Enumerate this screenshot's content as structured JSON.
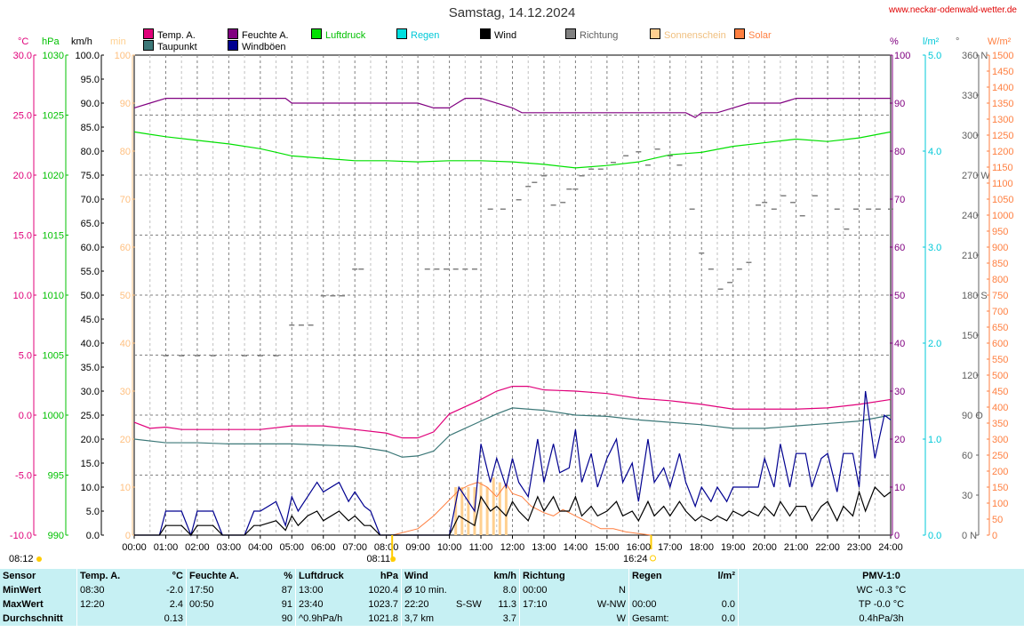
{
  "title": "Samstag, 14.12.2024",
  "site": "www.neckar-odenwald-wetter.de",
  "legend": [
    {
      "label": "Temp. A.",
      "color": "#e0007a"
    },
    {
      "label": "Taupunkt",
      "color": "#3c7878"
    },
    {
      "label": "Feuchte A.",
      "color": "#800080"
    },
    {
      "label": "Windböen",
      "color": "#000090"
    },
    {
      "label": "Luftdruck",
      "color": "#00e000"
    },
    {
      "label": "Regen",
      "color": "#00e0e0"
    },
    {
      "label": "Wind",
      "color": "#000000"
    },
    {
      "label": "Richtung",
      "color": "#808080"
    },
    {
      "label": "Sonnenschein",
      "color": "#ffd090"
    },
    {
      "label": "Solar",
      "color": "#ff7f40"
    }
  ],
  "units": {
    "temp": "°C",
    "pressure": "hPa",
    "wind": "km/h",
    "sun": "min",
    "humidity": "%",
    "rain": "l/m²",
    "direction": "°",
    "solar": "W/m²"
  },
  "markers": {
    "sunrise_left": "08:12",
    "sunrise": "08:11",
    "sunset": "16:24"
  },
  "chart_data": {
    "type": "line",
    "x_ticks": [
      "00:00",
      "01:00",
      "02:00",
      "03:00",
      "04:00",
      "05:00",
      "06:00",
      "07:00",
      "08:00",
      "09:00",
      "10:00",
      "11:00",
      "12:00",
      "13:00",
      "14:00",
      "15:00",
      "16:00",
      "17:00",
      "18:00",
      "19:00",
      "20:00",
      "21:00",
      "22:00",
      "23:00",
      "24:00"
    ],
    "axes": {
      "temp_ticks": [
        "30.0",
        "25.0",
        "20.0",
        "15.0",
        "10.0",
        "5.0",
        "0.0",
        "-5.0",
        "-10.0"
      ],
      "pressure_ticks": [
        "1030",
        "1025",
        "1020",
        "1015",
        "1010",
        "1005",
        "1000",
        "995",
        "990"
      ],
      "wind_ticks": [
        "100.0",
        "95.0",
        "90.0",
        "85.0",
        "80.0",
        "75.0",
        "70.0",
        "65.0",
        "60.0",
        "55.0",
        "50.0",
        "45.0",
        "40.0",
        "35.0",
        "30.0",
        "25.0",
        "20.0",
        "15.0",
        "10.0",
        "5.0",
        "0.0"
      ],
      "sun_ticks": [
        "100",
        "90",
        "80",
        "70",
        "60",
        "50",
        "40",
        "30",
        "20",
        "10",
        "0"
      ],
      "humidity_ticks": [
        "100",
        "90",
        "80",
        "70",
        "60",
        "50",
        "40",
        "30",
        "20",
        "10",
        "0"
      ],
      "rain_ticks": [
        "5.0",
        "4.0",
        "3.0",
        "2.0",
        "1.0",
        "0.0"
      ],
      "dir_ticks": [
        "360 N",
        "330",
        "300",
        "270 W",
        "240",
        "210",
        "180 S",
        "150",
        "120",
        "90 O",
        "60",
        "30",
        "0 N"
      ],
      "solar_ticks": [
        "1500",
        "1450",
        "1400",
        "1350",
        "1300",
        "1250",
        "1200",
        "1150",
        "1100",
        "1050",
        "1000",
        "950",
        "900",
        "850",
        "800",
        "750",
        "700",
        "650",
        "600",
        "550",
        "500",
        "450",
        "400",
        "350",
        "300",
        "250",
        "200",
        "150",
        "100",
        "50",
        "0"
      ]
    },
    "ranges": {
      "wind": [
        0,
        100
      ],
      "temp": [
        -10,
        30
      ],
      "pressure": [
        990,
        1030
      ],
      "humidity": [
        0,
        100
      ],
      "direction": [
        0,
        360
      ],
      "solar": [
        0,
        1500
      ]
    },
    "series": [
      {
        "name": "Temp. A.",
        "color": "#e0007a",
        "axis": "temp",
        "x": [
          0,
          0.5,
          1,
          1.5,
          2,
          3,
          4,
          5,
          6,
          7,
          8,
          8.5,
          9,
          9.5,
          10,
          11,
          11.5,
          12,
          12.5,
          13,
          14,
          15,
          16,
          17,
          18,
          19,
          20,
          21,
          22,
          23,
          24
        ],
        "y": [
          -0.6,
          -1.1,
          -1.0,
          -1.2,
          -1.2,
          -1.2,
          -1.2,
          -0.9,
          -0.9,
          -1.2,
          -1.5,
          -1.9,
          -1.9,
          -1.4,
          0.1,
          1.3,
          2.0,
          2.4,
          2.4,
          2.1,
          2.0,
          1.8,
          1.4,
          1.2,
          0.9,
          0.5,
          0.5,
          0.5,
          0.6,
          0.9,
          1.3
        ]
      },
      {
        "name": "Taupunkt",
        "color": "#3c7878",
        "axis": "temp",
        "x": [
          0,
          1,
          2,
          3,
          4,
          5,
          6,
          7,
          8,
          8.5,
          9,
          9.5,
          10,
          11,
          11.5,
          12,
          13,
          14,
          15,
          16,
          17,
          18,
          19,
          20,
          21,
          22,
          23,
          24
        ],
        "y": [
          -2.0,
          -2.3,
          -2.3,
          -2.4,
          -2.4,
          -2.4,
          -2.5,
          -2.6,
          -3.0,
          -3.5,
          -3.4,
          -3.0,
          -1.7,
          -0.5,
          0.1,
          0.6,
          0.4,
          0.0,
          -0.1,
          -0.4,
          -0.6,
          -0.8,
          -1.1,
          -1.1,
          -0.9,
          -0.7,
          -0.5,
          0.0
        ]
      },
      {
        "name": "Feuchte A.",
        "color": "#800080",
        "axis": "humidity",
        "x": [
          0,
          0.5,
          1,
          2,
          3,
          4,
          4.8,
          5,
          6,
          7,
          8,
          9,
          9.5,
          10,
          10.5,
          11,
          12,
          12.3,
          13,
          14,
          15,
          16,
          17,
          17.5,
          17.8,
          18,
          18.5,
          19,
          19.5,
          20,
          20.5,
          21,
          22,
          23,
          24
        ],
        "y": [
          89,
          90,
          91,
          91,
          91,
          91,
          91,
          90,
          90,
          90,
          90,
          90,
          89,
          89,
          91,
          91,
          89,
          88,
          88,
          88,
          88,
          88,
          88,
          88,
          87,
          88,
          88,
          89,
          90,
          90,
          90,
          91,
          91,
          91,
          91
        ]
      },
      {
        "name": "Luftdruck",
        "color": "#00e000",
        "axis": "pressure",
        "x": [
          0,
          0.5,
          1,
          2,
          3,
          4,
          4.5,
          5,
          6,
          7,
          8,
          9,
          10,
          11,
          12,
          13,
          14,
          15,
          16,
          17,
          18,
          19,
          20,
          21,
          22,
          23,
          24
        ],
        "y": [
          1023.6,
          1023.4,
          1023.2,
          1022.9,
          1022.6,
          1022.2,
          1021.9,
          1021.6,
          1021.4,
          1021.2,
          1021.2,
          1021.1,
          1021.2,
          1021.2,
          1021.1,
          1020.9,
          1020.6,
          1020.8,
          1021.1,
          1021.7,
          1021.9,
          1022.4,
          1022.7,
          1023.0,
          1022.8,
          1023.1,
          1023.6
        ]
      },
      {
        "name": "Windböen",
        "color": "#000090",
        "axis": "wind",
        "x": [
          0,
          0.5,
          0.8,
          1,
          1.5,
          1.8,
          2,
          2.5,
          2.8,
          3,
          3.5,
          3.8,
          4,
          4.5,
          4.8,
          5,
          5.2,
          5.5,
          5.8,
          6,
          6.5,
          6.8,
          7,
          7.3,
          7.5,
          7.8,
          8,
          9,
          10,
          10.3,
          10.8,
          11,
          11.3,
          11.5,
          11.8,
          12,
          12.2,
          12.5,
          12.8,
          13,
          13.3,
          13.5,
          13.8,
          14,
          14.2,
          14.5,
          14.7,
          15,
          15.3,
          15.5,
          15.8,
          16,
          16.3,
          16.5,
          16.8,
          17,
          17.3,
          17.5,
          17.8,
          18,
          18.3,
          18.5,
          18.8,
          19,
          19.3,
          19.5,
          19.8,
          20,
          20.3,
          20.5,
          20.8,
          21,
          21.3,
          21.5,
          21.8,
          22,
          22.3,
          22.5,
          22.8,
          23,
          23.2,
          23.5,
          23.8,
          24
        ],
        "y": [
          0,
          0,
          0,
          5,
          5,
          0,
          5,
          5,
          0,
          0,
          0,
          5,
          5,
          7,
          2,
          8,
          5,
          8,
          11,
          9,
          11,
          7,
          9,
          6,
          5,
          0,
          0,
          0,
          0,
          10,
          5,
          19,
          11,
          16,
          10,
          16,
          11,
          8,
          20,
          11,
          19,
          13,
          14,
          22,
          11,
          17,
          10,
          16,
          20,
          11,
          15,
          7,
          20,
          11,
          14,
          10,
          17,
          11,
          6,
          10,
          7,
          10,
          7,
          10,
          10,
          10,
          10,
          16,
          10,
          19,
          10,
          17,
          17,
          10,
          16,
          17,
          9,
          17,
          17,
          10,
          30,
          16,
          25,
          24
        ]
      },
      {
        "name": "Wind",
        "color": "#000000",
        "axis": "wind",
        "x": [
          0,
          0.5,
          0.8,
          1,
          1.5,
          1.8,
          2,
          2.5,
          2.8,
          3,
          3.5,
          3.8,
          4,
          4.5,
          4.8,
          5,
          5.2,
          5.5,
          5.8,
          6,
          6.5,
          6.8,
          7,
          7.3,
          7.5,
          7.8,
          8,
          9,
          10,
          10.3,
          10.8,
          11,
          11.3,
          11.5,
          11.8,
          12,
          12.2,
          12.5,
          12.8,
          13,
          13.3,
          13.5,
          13.8,
          14,
          14.2,
          14.5,
          14.7,
          15,
          15.3,
          15.5,
          15.8,
          16,
          16.3,
          16.5,
          16.8,
          17,
          17.3,
          17.5,
          17.8,
          18,
          18.3,
          18.5,
          18.8,
          19,
          19.3,
          19.5,
          19.8,
          20,
          20.3,
          20.5,
          20.8,
          21,
          21.3,
          21.5,
          21.8,
          22,
          22.3,
          22.5,
          22.8,
          23,
          23.2,
          23.5,
          23.8,
          24
        ],
        "y": [
          0,
          0,
          0,
          2,
          2,
          0,
          2,
          2,
          0,
          0,
          0,
          2,
          2,
          3,
          1,
          4,
          2,
          4,
          5,
          3,
          5,
          3,
          4,
          2,
          2,
          0,
          0,
          0,
          0,
          4,
          2,
          8,
          5,
          6,
          4,
          7,
          5,
          3,
          8,
          5,
          8,
          5,
          5,
          8,
          4,
          6,
          4,
          5,
          7,
          4,
          5,
          3,
          7,
          4,
          6,
          4,
          7,
          5,
          3,
          4,
          3,
          4,
          3,
          5,
          4,
          5,
          4,
          6,
          4,
          7,
          4,
          6,
          6,
          3,
          6,
          7,
          3,
          6,
          4,
          9,
          5,
          10,
          8,
          9
        ]
      },
      {
        "name": "Richtung",
        "color": "#808080",
        "axis": "direction",
        "style": "dots",
        "x": [
          1,
          1.5,
          2,
          2.5,
          3.5,
          4,
          4.5,
          5,
          5.3,
          5.6,
          6,
          6.3,
          6.6,
          7,
          7.2,
          9.3,
          9.6,
          9.9,
          10.2,
          10.5,
          10.8,
          11.3,
          11.7,
          12.2,
          12.5,
          12.7,
          13,
          13.3,
          13.6,
          13.8,
          14,
          14.2,
          14.5,
          14.8,
          15.2,
          15.6,
          16,
          16.3,
          16.6,
          17,
          17.3,
          17.7,
          18,
          18.3,
          18.6,
          18.9,
          19.2,
          19.5,
          19.8,
          20,
          20.3,
          20.6,
          20.9,
          21.2,
          21.6,
          22.3,
          22.6,
          22.9,
          23.3,
          23.6,
          24
        ],
        "y": [
          135,
          135,
          135,
          135,
          135,
          135,
          135,
          158,
          158,
          158,
          180,
          180,
          180,
          200,
          200,
          200,
          200,
          200,
          200,
          200,
          200,
          245,
          245,
          252,
          262,
          265,
          270,
          248,
          250,
          260,
          260,
          270,
          275,
          275,
          280,
          285,
          288,
          278,
          290,
          285,
          278,
          245,
          212,
          200,
          185,
          190,
          200,
          205,
          248,
          250,
          245,
          255,
          250,
          240,
          255,
          245,
          230,
          245,
          245,
          245,
          245
        ]
      }
    ],
    "sunshine_bars": {
      "color": "#ffd090",
      "axis": "sun",
      "x": [
        10.2,
        10.4,
        10.6,
        10.8,
        11.0,
        11.2,
        11.4,
        11.6,
        11.8
      ],
      "y": [
        10,
        10,
        10,
        10,
        11,
        10,
        12,
        11,
        10
      ]
    },
    "solar": {
      "color": "#ff7f40",
      "axis": "solar",
      "x": [
        8.2,
        9,
        9.5,
        10,
        10.3,
        10.6,
        10.9,
        11.2,
        11.5,
        11.8,
        12,
        12.3,
        12.6,
        13,
        13.3,
        13.6,
        14,
        14.4,
        14.8,
        15.2,
        15.6,
        16,
        16.4
      ],
      "y": [
        0,
        20,
        60,
        110,
        140,
        155,
        165,
        150,
        120,
        160,
        130,
        120,
        90,
        70,
        60,
        80,
        60,
        40,
        20,
        20,
        10,
        5,
        0
      ]
    }
  },
  "stats": {
    "headers": {
      "sensor": "Sensor",
      "temp": "Temp. A.",
      "temp_unit": "°C",
      "hum": "Feuchte A.",
      "hum_unit": "%",
      "press": "Luftdruck",
      "press_unit": "hPa",
      "wind": "Wind",
      "wind_unit": "km/h",
      "dir": "Richtung",
      "rain": "Regen",
      "rain_unit": "l/m²",
      "pmv": "PMV-1:0"
    },
    "rows": [
      {
        "label": "MinWert",
        "temp_time": "08:30",
        "temp_val": "-2.0",
        "hum_time": "17:50",
        "hum_val": "87",
        "press_time": "13:00",
        "press_val": "1020.4",
        "wind_label": "Ø 10 min.",
        "wind_val": "8.0",
        "dir_time": "00:00",
        "dir_val": "N",
        "rain_time": "",
        "rain_val": "",
        "pmv": "WC -0.3 °C"
      },
      {
        "label": "MaxWert",
        "temp_time": "12:20",
        "temp_val": "2.4",
        "hum_time": "00:50",
        "hum_val": "91",
        "press_time": "23:40",
        "press_val": "1023.7",
        "wind_label": "22:20",
        "wind_mid": "S-SW",
        "wind_val": "11.3",
        "dir_time": "17:10",
        "dir_val": "W-NW",
        "rain_time": "00:00",
        "rain_val": "0.0",
        "pmv": "TP -0.0 °C"
      },
      {
        "label": "Durchschnitt",
        "temp_time": "",
        "temp_val": "0.13",
        "hum_time": "",
        "hum_val": "90",
        "press_time": "^0.9hPa/h",
        "press_val": "1021.8",
        "wind_label": "3,7 km",
        "wind_val": "3.7",
        "dir_time": "",
        "dir_val": "W",
        "rain_time": "Gesamt:",
        "rain_val": "0.0",
        "pmv": "0.4hPa/3h"
      }
    ]
  }
}
